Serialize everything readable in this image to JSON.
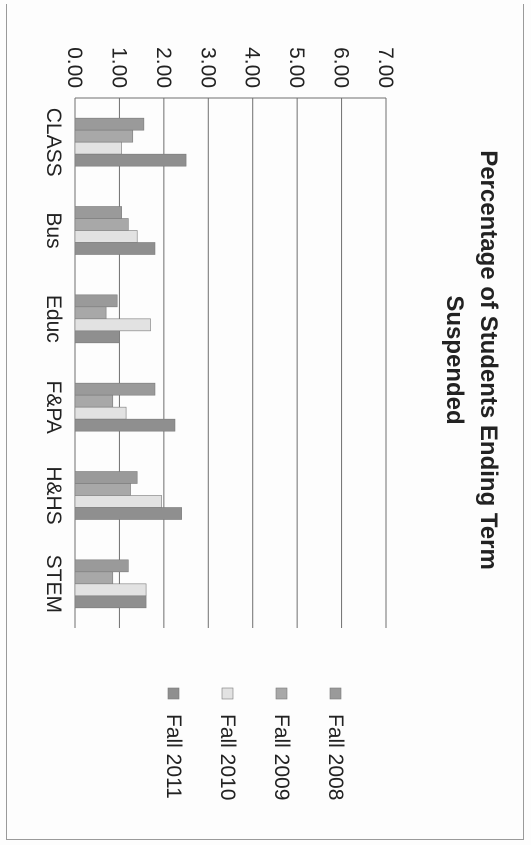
{
  "chart_data": {
    "type": "bar",
    "orientation": "vertical",
    "title_lines": [
      "Percentage of Students Ending Term",
      "Suspended"
    ],
    "categories": [
      "CLASS",
      "Bus",
      "Educ",
      "F&PA",
      "H&HS",
      "STEM"
    ],
    "series": [
      {
        "name": "Fall 2008",
        "color": "#9a9a9a",
        "values": [
          1.55,
          1.05,
          0.95,
          1.8,
          1.4,
          1.2
        ]
      },
      {
        "name": "Fall 2009",
        "color": "#a8a8a8",
        "values": [
          1.3,
          1.2,
          0.7,
          0.85,
          1.25,
          0.85
        ]
      },
      {
        "name": "Fall 2010",
        "color": "#e2e2e2",
        "values": [
          1.05,
          1.4,
          1.7,
          1.15,
          1.95,
          1.6
        ]
      },
      {
        "name": "Fall 2011",
        "color": "#8f8f8f",
        "values": [
          2.5,
          1.8,
          1.0,
          2.25,
          2.4,
          1.6
        ]
      }
    ],
    "ylim": [
      0,
      7
    ],
    "yticks": [
      "0.00",
      "1.00",
      "2.00",
      "3.00",
      "4.00",
      "5.00",
      "6.00",
      "7.00"
    ],
    "grid": true,
    "legend": "right"
  }
}
